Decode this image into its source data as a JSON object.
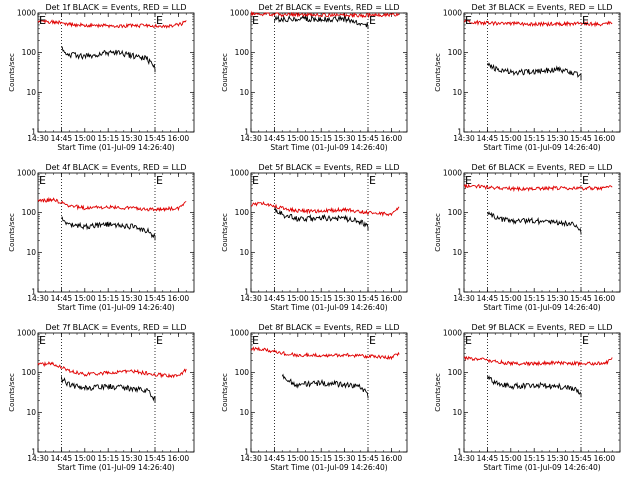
{
  "chart_data": [
    {
      "type": "line",
      "title": "Det 1f BLACK = Events, RED = LLD",
      "xlabel": "Start Time (01-Jul-09 14:26:40)",
      "ylabel": "Counts/sec",
      "yscale": "log",
      "ylim": [
        1,
        1000
      ],
      "xlim": [
        "14:30",
        "16:10"
      ],
      "xticks": [
        "14:30",
        "14:45",
        "15:00",
        "15:15",
        "15:30",
        "15:45",
        "16:00"
      ],
      "yticks": [
        "1",
        "10",
        "100",
        "1000"
      ],
      "vlines": [
        "14:45",
        "15:45"
      ],
      "markers": [
        {
          "label": "E",
          "x": "14:30"
        },
        {
          "label": "E",
          "x": "15:45"
        }
      ],
      "series": [
        {
          "color": "#e00000",
          "x": [
            "14:30",
            "14:40",
            "14:50",
            "15:00",
            "15:10",
            "15:20",
            "15:30",
            "15:40",
            "15:50",
            "16:00",
            "16:05"
          ],
          "values": [
            620,
            600,
            520,
            490,
            480,
            470,
            475,
            480,
            460,
            500,
            600
          ]
        },
        {
          "color": "#000000",
          "x": [
            "14:45",
            "14:50",
            "15:00",
            "15:10",
            "15:20",
            "15:30",
            "15:40",
            "15:45"
          ],
          "values": [
            130,
            90,
            80,
            95,
            100,
            85,
            70,
            40
          ]
        }
      ]
    },
    {
      "type": "line",
      "title": "Det 2f BLACK = Events, RED = LLD",
      "xlabel": "Start Time (01-Jul-09 14:26:40)",
      "ylabel": "Counts/sec",
      "yscale": "log",
      "ylim": [
        1,
        1000
      ],
      "xlim": [
        "14:30",
        "16:10"
      ],
      "xticks": [
        "14:30",
        "14:45",
        "15:00",
        "15:15",
        "15:30",
        "15:45",
        "16:00"
      ],
      "yticks": [
        "1",
        "10",
        "100",
        "1000"
      ],
      "vlines": [
        "14:45",
        "15:45"
      ],
      "markers": [
        {
          "label": "E",
          "x": "14:30"
        },
        {
          "label": "E",
          "x": "15:45"
        }
      ],
      "series": [
        {
          "color": "#e00000",
          "x": [
            "14:30",
            "14:45",
            "15:00",
            "15:15",
            "15:30",
            "15:45",
            "16:00",
            "16:05"
          ],
          "values": [
            950,
            920,
            900,
            880,
            870,
            880,
            900,
            950
          ]
        },
        {
          "color": "#000000",
          "x": [
            "14:45",
            "15:00",
            "15:15",
            "15:30",
            "15:45"
          ],
          "values": [
            700,
            720,
            700,
            710,
            500
          ]
        }
      ]
    },
    {
      "type": "line",
      "title": "Det 3f BLACK = Events, RED = LLD",
      "xlabel": "Start Time (01-Jul-09 14:26:40)",
      "ylabel": "Counts/sec",
      "yscale": "log",
      "ylim": [
        1,
        1000
      ],
      "xlim": [
        "14:30",
        "16:10"
      ],
      "xticks": [
        "14:30",
        "14:45",
        "15:00",
        "15:15",
        "15:30",
        "15:45",
        "16:00"
      ],
      "yticks": [
        "1",
        "10",
        "100",
        "1000"
      ],
      "vlines": [
        "14:45",
        "15:45"
      ],
      "markers": [
        {
          "label": "E",
          "x": "14:30"
        },
        {
          "label": "E",
          "x": "15:45"
        }
      ],
      "series": [
        {
          "color": "#e00000",
          "x": [
            "14:30",
            "14:45",
            "15:00",
            "15:15",
            "15:30",
            "15:45",
            "16:00",
            "16:05"
          ],
          "values": [
            600,
            560,
            540,
            520,
            530,
            540,
            520,
            600
          ]
        },
        {
          "color": "#000000",
          "x": [
            "14:45",
            "14:50",
            "15:00",
            "15:15",
            "15:30",
            "15:40",
            "15:45"
          ],
          "values": [
            55,
            40,
            32,
            33,
            38,
            30,
            25
          ]
        }
      ]
    },
    {
      "type": "line",
      "title": "Det 4f BLACK = Events, RED = LLD",
      "xlabel": "Start Time (01-Jul-09 14:26:40)",
      "ylabel": "Counts/sec",
      "yscale": "log",
      "ylim": [
        1,
        1000
      ],
      "xlim": [
        "14:30",
        "16:10"
      ],
      "xticks": [
        "14:30",
        "14:45",
        "15:00",
        "15:15",
        "15:30",
        "15:45",
        "16:00"
      ],
      "yticks": [
        "1",
        "10",
        "100",
        "1000"
      ],
      "vlines": [
        "14:45",
        "15:45"
      ],
      "markers": [
        {
          "label": "E",
          "x": "14:30"
        },
        {
          "label": "E",
          "x": "15:45"
        }
      ],
      "series": [
        {
          "color": "#e00000",
          "x": [
            "14:30",
            "14:40",
            "14:50",
            "15:00",
            "15:15",
            "15:30",
            "15:45",
            "16:00",
            "16:05"
          ],
          "values": [
            200,
            210,
            150,
            130,
            140,
            130,
            120,
            130,
            180
          ]
        },
        {
          "color": "#000000",
          "x": [
            "14:45",
            "14:50",
            "15:00",
            "15:15",
            "15:30",
            "15:40",
            "15:45"
          ],
          "values": [
            70,
            50,
            45,
            50,
            45,
            35,
            25
          ]
        }
      ]
    },
    {
      "type": "line",
      "title": "Det 5f BLACK = Events, RED = LLD",
      "xlabel": "Start Time (01-Jul-09 14:26:40)",
      "ylabel": "Counts/sec",
      "yscale": "log",
      "ylim": [
        1,
        1000
      ],
      "xlim": [
        "14:30",
        "16:10"
      ],
      "xticks": [
        "14:30",
        "14:45",
        "15:00",
        "15:15",
        "15:30",
        "15:45",
        "16:00"
      ],
      "yticks": [
        "1",
        "10",
        "100",
        "1000"
      ],
      "vlines": [
        "14:45",
        "15:45"
      ],
      "markers": [
        {
          "label": "E",
          "x": "14:30"
        },
        {
          "label": "E",
          "x": "15:45"
        }
      ],
      "series": [
        {
          "color": "#e00000",
          "x": [
            "14:30",
            "14:40",
            "14:50",
            "15:00",
            "15:15",
            "15:30",
            "15:45",
            "16:00",
            "16:05"
          ],
          "values": [
            160,
            170,
            130,
            110,
            110,
            120,
            100,
            90,
            140
          ]
        },
        {
          "color": "#000000",
          "x": [
            "14:45",
            "14:50",
            "15:00",
            "15:15",
            "15:30",
            "15:40",
            "15:45"
          ],
          "values": [
            130,
            90,
            70,
            75,
            70,
            60,
            45
          ]
        }
      ]
    },
    {
      "type": "line",
      "title": "Det 6f BLACK = Events, RED = LLD",
      "xlabel": "Start Time (01-Jul-09 14:26:40)",
      "ylabel": "Counts/sec",
      "yscale": "log",
      "ylim": [
        1,
        1000
      ],
      "xlim": [
        "14:30",
        "16:10"
      ],
      "xticks": [
        "14:30",
        "14:45",
        "15:00",
        "15:15",
        "15:30",
        "15:45",
        "16:00"
      ],
      "yticks": [
        "1",
        "10",
        "100",
        "1000"
      ],
      "vlines": [
        "14:45",
        "15:45"
      ],
      "markers": [
        {
          "label": "E",
          "x": "14:30"
        },
        {
          "label": "E",
          "x": "15:45"
        }
      ],
      "series": [
        {
          "color": "#e00000",
          "x": [
            "14:30",
            "14:40",
            "14:50",
            "15:00",
            "15:15",
            "15:30",
            "15:45",
            "16:00",
            "16:05"
          ],
          "values": [
            470,
            460,
            420,
            400,
            400,
            420,
            410,
            420,
            480
          ]
        },
        {
          "color": "#000000",
          "x": [
            "14:45",
            "14:50",
            "15:00",
            "15:15",
            "15:30",
            "15:40",
            "15:45"
          ],
          "values": [
            100,
            75,
            60,
            62,
            58,
            50,
            35
          ]
        }
      ]
    },
    {
      "type": "line",
      "title": "Det 7f BLACK = Events, RED = LLD",
      "xlabel": "Start Time (01-Jul-09 14:26:40)",
      "ylabel": "Counts/sec",
      "yscale": "log",
      "ylim": [
        1,
        1000
      ],
      "xlim": [
        "14:30",
        "16:10"
      ],
      "xticks": [
        "14:30",
        "14:45",
        "15:00",
        "15:15",
        "15:30",
        "15:45",
        "16:00"
      ],
      "yticks": [
        "1",
        "10",
        "100",
        "1000"
      ],
      "vlines": [
        "14:45",
        "15:45"
      ],
      "markers": [
        {
          "label": "E",
          "x": "14:30"
        },
        {
          "label": "E",
          "x": "15:45"
        }
      ],
      "series": [
        {
          "color": "#e00000",
          "x": [
            "14:30",
            "14:40",
            "14:50",
            "15:00",
            "15:15",
            "15:30",
            "15:45",
            "16:00",
            "16:05"
          ],
          "values": [
            160,
            170,
            110,
            90,
            100,
            110,
            90,
            80,
            120
          ]
        },
        {
          "color": "#000000",
          "x": [
            "14:45",
            "14:50",
            "15:00",
            "15:15",
            "15:30",
            "15:40",
            "15:45"
          ],
          "values": [
            70,
            50,
            40,
            45,
            40,
            35,
            22
          ]
        }
      ]
    },
    {
      "type": "line",
      "title": "Det 8f BLACK = Events, RED = LLD",
      "xlabel": "Start Time (01-Jul-09 14:26:40)",
      "ylabel": "Counts/sec",
      "yscale": "log",
      "ylim": [
        1,
        1000
      ],
      "xlim": [
        "14:30",
        "16:10"
      ],
      "xticks": [
        "14:30",
        "14:45",
        "15:00",
        "15:15",
        "15:30",
        "15:45",
        "16:00"
      ],
      "yticks": [
        "1",
        "10",
        "100",
        "1000"
      ],
      "vlines": [
        "14:45",
        "15:45"
      ],
      "markers": [
        {
          "label": "E",
          "x": "14:30"
        },
        {
          "label": "E",
          "x": "15:45"
        }
      ],
      "series": [
        {
          "color": "#e00000",
          "x": [
            "14:30",
            "14:40",
            "14:50",
            "15:00",
            "15:15",
            "15:30",
            "15:45",
            "16:00",
            "16:05"
          ],
          "values": [
            400,
            370,
            310,
            280,
            270,
            280,
            260,
            240,
            300
          ]
        },
        {
          "color": "#000000",
          "x": [
            "14:50",
            "14:55",
            "15:00",
            "15:15",
            "15:30",
            "15:40",
            "15:45"
          ],
          "values": [
            85,
            60,
            50,
            55,
            50,
            45,
            28
          ]
        }
      ]
    },
    {
      "type": "line",
      "title": "Det 9f BLACK = Events, RED = LLD",
      "xlabel": "Start Time (01-Jul-09 14:26:40)",
      "ylabel": "Counts/sec",
      "yscale": "log",
      "ylim": [
        1,
        1000
      ],
      "xlim": [
        "14:30",
        "16:10"
      ],
      "xticks": [
        "14:30",
        "14:45",
        "15:00",
        "15:15",
        "15:30",
        "15:45",
        "16:00"
      ],
      "yticks": [
        "1",
        "10",
        "100",
        "1000"
      ],
      "vlines": [
        "14:45",
        "15:45"
      ],
      "markers": [
        {
          "label": "E",
          "x": "14:30"
        },
        {
          "label": "E",
          "x": "15:45"
        }
      ],
      "series": [
        {
          "color": "#e00000",
          "x": [
            "14:30",
            "14:40",
            "14:50",
            "15:00",
            "15:15",
            "15:30",
            "15:45",
            "16:00",
            "16:05"
          ],
          "values": [
            230,
            220,
            190,
            170,
            170,
            180,
            170,
            170,
            220
          ]
        },
        {
          "color": "#000000",
          "x": [
            "14:45",
            "14:50",
            "15:00",
            "15:15",
            "15:30",
            "15:40",
            "15:45"
          ],
          "values": [
            75,
            55,
            45,
            48,
            45,
            40,
            30
          ]
        }
      ]
    }
  ]
}
